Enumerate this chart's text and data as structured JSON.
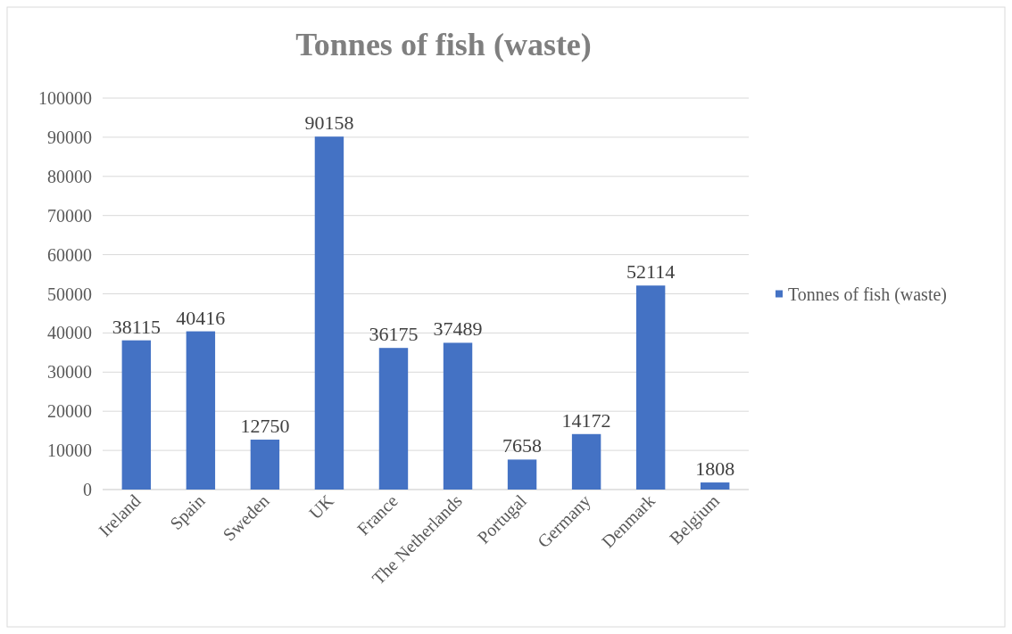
{
  "chart_data": {
    "type": "bar",
    "title": "Tonnes of fish (waste)",
    "categories": [
      "Ireland",
      "Spain",
      "Sweden",
      "UK",
      "France",
      "The Netherlands",
      "Portugal",
      "Germany",
      "Denmark",
      "Belgium"
    ],
    "series": [
      {
        "name": "Tonnes of fish (waste)",
        "color": "#4472c4",
        "values": [
          38115,
          40416,
          12750,
          90158,
          36175,
          37489,
          7658,
          14172,
          52114,
          1808
        ]
      }
    ],
    "ylim": [
      0,
      100000
    ],
    "yticks": [
      0,
      10000,
      20000,
      30000,
      40000,
      50000,
      60000,
      70000,
      80000,
      90000,
      100000
    ],
    "grid": "y",
    "legend": "right",
    "data_labels": true
  }
}
